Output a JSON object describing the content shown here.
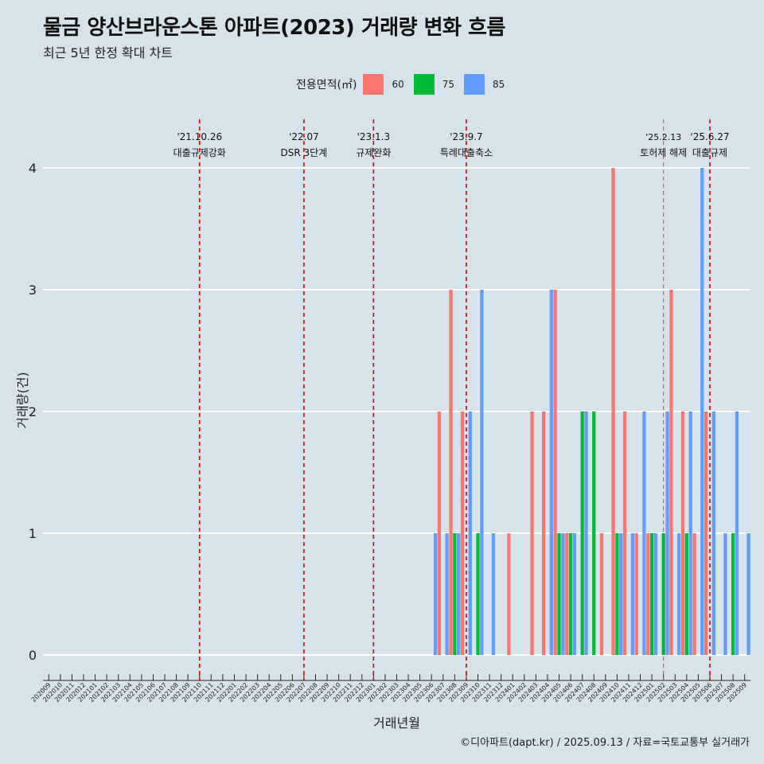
{
  "chart_data": {
    "type": "bar",
    "title": "물금 양산브라운스톤 아파트(2023) 거래량 변화 흐름",
    "subtitle": "최근 5년 한정 확대 차트",
    "xlabel": "거래년월",
    "ylabel": "거래량(건)",
    "legend_title": "전용면적(㎡)",
    "legend_position": "top",
    "caption": "©디아파트(dapt.kr) / 2025.09.13 / 자료=국토교통부 실거래가",
    "ylim": [
      0,
      4
    ],
    "yticks": [
      0,
      1,
      2,
      3,
      4
    ],
    "grid": true,
    "categories": [
      "202009",
      "202010",
      "202011",
      "202012",
      "202101",
      "202102",
      "202103",
      "202104",
      "202105",
      "202106",
      "202107",
      "202108",
      "202109",
      "202110",
      "202111",
      "202112",
      "202201",
      "202202",
      "202203",
      "202204",
      "202205",
      "202206",
      "202207",
      "202208",
      "202209",
      "202210",
      "202211",
      "202212",
      "202301",
      "202302",
      "202303",
      "202304",
      "202305",
      "202306",
      "202307",
      "202308",
      "202309",
      "202310",
      "202311",
      "202312",
      "202401",
      "202402",
      "202403",
      "202404",
      "202405",
      "202406",
      "202407",
      "202408",
      "202409",
      "202410",
      "202411",
      "202412",
      "202501",
      "202502",
      "202503",
      "202504",
      "202505",
      "202506",
      "202507",
      "202508",
      "202509"
    ],
    "series": [
      {
        "name": "60",
        "color": "#f8766d",
        "values": [
          0,
          0,
          0,
          0,
          0,
          0,
          0,
          0,
          0,
          0,
          0,
          0,
          0,
          0,
          0,
          0,
          0,
          0,
          0,
          0,
          0,
          0,
          0,
          0,
          0,
          0,
          0,
          0,
          0,
          0,
          0,
          0,
          0,
          0,
          2,
          3,
          2,
          0,
          0,
          0,
          1,
          0,
          2,
          2,
          3,
          1,
          0,
          0,
          1,
          4,
          2,
          1,
          1,
          0,
          3,
          2,
          1,
          2,
          0,
          0,
          0
        ]
      },
      {
        "name": "75",
        "color": "#00ba38",
        "values": [
          0,
          0,
          0,
          0,
          0,
          0,
          0,
          0,
          0,
          0,
          0,
          0,
          0,
          0,
          0,
          0,
          0,
          0,
          0,
          0,
          0,
          0,
          0,
          0,
          0,
          0,
          0,
          0,
          0,
          0,
          0,
          0,
          0,
          0,
          0,
          1,
          0,
          1,
          0,
          0,
          0,
          0,
          0,
          0,
          1,
          1,
          2,
          2,
          0,
          1,
          0,
          0,
          1,
          1,
          0,
          1,
          0,
          0,
          0,
          1,
          0
        ]
      },
      {
        "name": "85",
        "color": "#619cff",
        "values": [
          0,
          0,
          0,
          0,
          0,
          0,
          0,
          0,
          0,
          0,
          0,
          0,
          0,
          0,
          0,
          0,
          0,
          0,
          0,
          0,
          0,
          0,
          0,
          0,
          0,
          0,
          0,
          0,
          0,
          0,
          0,
          0,
          0,
          1,
          1,
          1,
          2,
          3,
          1,
          0,
          0,
          0,
          0,
          3,
          1,
          1,
          2,
          0,
          0,
          1,
          1,
          2,
          1,
          2,
          1,
          2,
          4,
          2,
          1,
          2,
          1
        ]
      }
    ],
    "events": [
      {
        "date": "'21.10.26",
        "label": "대출규제강화",
        "category": "202110"
      },
      {
        "date": "'22.07",
        "label": "DSR 3단계",
        "category": "202207"
      },
      {
        "date": "'23.1.3",
        "label": "규제완화",
        "category": "202301"
      },
      {
        "date": "'23.9.7",
        "label": "특례대출축소",
        "category": "202309"
      },
      {
        "date": "'25.2.13",
        "label": "토허제 해제",
        "category": "202502"
      },
      {
        "date": "'25.6.27",
        "label": "대출규제",
        "category": "202506"
      }
    ]
  }
}
